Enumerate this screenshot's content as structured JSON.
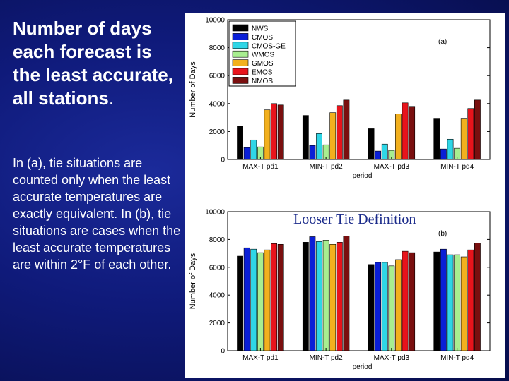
{
  "slide": {
    "title_main": "Number of days each forecast is the least accurate, all stations",
    "title_dot": ".",
    "body": "In (a), tie situations are counted only when the least accurate temperatures are exactly equivalent.  In (b), tie situations are cases when the least accurate temperatures are within 2°F of each other."
  },
  "annotation": "Looser Tie Definition",
  "chart_data": [
    {
      "type": "bar",
      "panel_label": "(a)",
      "categories": [
        "MAX-T pd1",
        "MIN-T pd2",
        "MAX-T pd3",
        "MIN-T pd4"
      ],
      "xlabel": "period",
      "ylabel": "Number of Days",
      "ylim": [
        0,
        10000
      ],
      "yticks": [
        0,
        2000,
        4000,
        6000,
        8000,
        10000
      ],
      "legend_position": "top-left",
      "series": [
        {
          "name": "NWS",
          "color": "#000000",
          "values": [
            2400,
            3150,
            2200,
            2950
          ]
        },
        {
          "name": "CMOS",
          "color": "#0a1fd6",
          "values": [
            850,
            1000,
            600,
            750
          ]
        },
        {
          "name": "CMOS-GE",
          "color": "#2fd6e6",
          "values": [
            1400,
            1850,
            1100,
            1450
          ]
        },
        {
          "name": "WMOS",
          "color": "#a8ee90",
          "values": [
            900,
            1050,
            650,
            800
          ]
        },
        {
          "name": "GMOS",
          "color": "#f2b01e",
          "values": [
            3550,
            3350,
            3250,
            2950
          ]
        },
        {
          "name": "EMOS",
          "color": "#e8141c",
          "values": [
            4000,
            3850,
            4050,
            3650
          ]
        },
        {
          "name": "NMOS",
          "color": "#7a0f0f",
          "values": [
            3900,
            4250,
            3800,
            4250
          ]
        }
      ]
    },
    {
      "type": "bar",
      "panel_label": "(b)",
      "categories": [
        "MAX-T pd1",
        "MIN-T pd2",
        "MAX-T pd3",
        "MIN-T pd4"
      ],
      "xlabel": "period",
      "ylabel": "Number of Days",
      "ylim": [
        0,
        10000
      ],
      "yticks": [
        0,
        2000,
        4000,
        6000,
        8000,
        10000
      ],
      "series": [
        {
          "name": "NWS",
          "color": "#000000",
          "values": [
            6800,
            7800,
            6200,
            7100
          ]
        },
        {
          "name": "CMOS",
          "color": "#0a1fd6",
          "values": [
            7400,
            8200,
            6350,
            7300
          ]
        },
        {
          "name": "CMOS-GE",
          "color": "#2fd6e6",
          "values": [
            7300,
            7850,
            6350,
            6900
          ]
        },
        {
          "name": "WMOS",
          "color": "#a8ee90",
          "values": [
            7050,
            7950,
            6100,
            6900
          ]
        },
        {
          "name": "GMOS",
          "color": "#f2b01e",
          "values": [
            7250,
            7650,
            6550,
            6750
          ]
        },
        {
          "name": "EMOS",
          "color": "#e8141c",
          "values": [
            7700,
            7800,
            7150,
            7250
          ]
        },
        {
          "name": "NMOS",
          "color": "#7a0f0f",
          "values": [
            7650,
            8250,
            7050,
            7750
          ]
        }
      ]
    }
  ]
}
